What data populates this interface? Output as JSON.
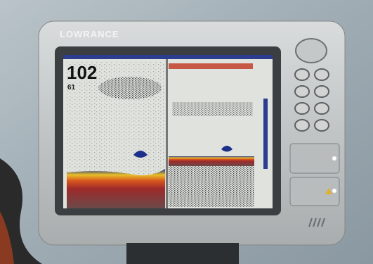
{
  "device": {
    "brand": "LOWRANCE",
    "depth": "102",
    "temperature": "61"
  }
}
